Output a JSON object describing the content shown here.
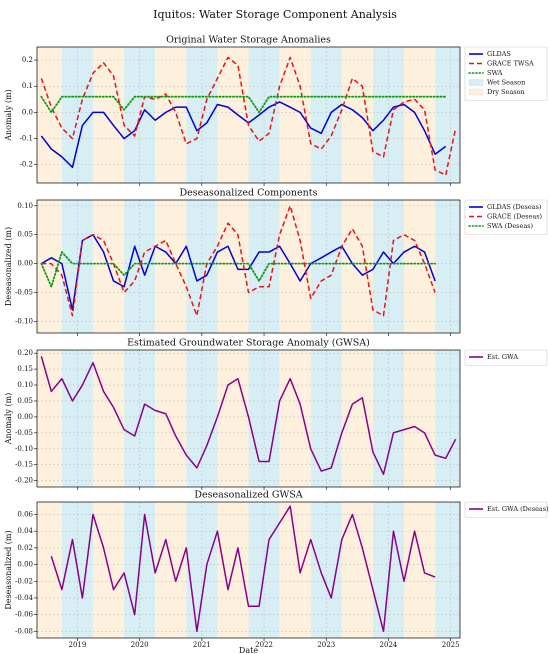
{
  "title": "Iquitos: Water Storage Component Analysis",
  "chart_data": [
    {
      "type": "line",
      "title": "Original Water Storage Anomalies",
      "ylabel": "Anomaly (m)",
      "xlim": [
        2018.35,
        2025.15
      ],
      "xticks": [
        2019,
        2020,
        2021,
        2022,
        2023,
        2024,
        2025
      ],
      "ylim": [
        -0.27,
        0.25
      ],
      "yticks": [
        -0.2,
        -0.1,
        {
          "value": 0,
          "label": "0.0"
        },
        0.1,
        0.2
      ],
      "grid": true,
      "seasons": [
        {
          "name": "Wet Season",
          "color": "#d6eef4",
          "ranges": [
            [
              2018.75,
              2019.25
            ],
            [
              2019.75,
              2020.25
            ],
            [
              2020.75,
              2021.25
            ],
            [
              2021.75,
              2022.25
            ],
            [
              2022.75,
              2023.25
            ],
            [
              2023.75,
              2024.25
            ],
            [
              2024.75,
              2025.25
            ]
          ]
        },
        {
          "name": "Dry Season",
          "color": "#fdf1de",
          "ranges": [
            [
              2018.25,
              2018.75
            ],
            [
              2019.25,
              2019.75
            ],
            [
              2020.25,
              2020.75
            ],
            [
              2021.25,
              2021.75
            ],
            [
              2022.25,
              2022.75
            ],
            [
              2023.25,
              2023.75
            ],
            [
              2024.25,
              2024.75
            ]
          ]
        }
      ],
      "x": [
        2018.42,
        2018.58,
        2018.75,
        2018.92,
        2019.08,
        2019.25,
        2019.42,
        2019.58,
        2019.75,
        2019.92,
        2020.08,
        2020.25,
        2020.42,
        2020.58,
        2020.75,
        2020.92,
        2021.08,
        2021.25,
        2021.42,
        2021.58,
        2021.75,
        2021.92,
        2022.08,
        2022.25,
        2022.42,
        2022.58,
        2022.75,
        2022.92,
        2023.08,
        2023.25,
        2023.42,
        2023.58,
        2023.75,
        2023.92,
        2024.08,
        2024.25,
        2024.42,
        2024.58,
        2024.75,
        2024.92,
        2025.08
      ],
      "series": [
        {
          "name": "GLDAS",
          "color": "#0000dd",
          "dash": "solid",
          "values": [
            -0.09,
            -0.14,
            -0.17,
            -0.21,
            -0.05,
            0.0,
            0.0,
            -0.05,
            -0.1,
            -0.07,
            0.01,
            -0.03,
            0.0,
            0.02,
            0.02,
            -0.07,
            -0.04,
            0.03,
            0.02,
            -0.01,
            -0.04,
            -0.01,
            0.02,
            0.04,
            0.02,
            0.0,
            -0.06,
            -0.08,
            0.0,
            0.03,
            0.01,
            -0.02,
            -0.07,
            -0.03,
            0.02,
            0.03,
            0.0,
            -0.07,
            -0.16,
            -0.13,
            null
          ]
        },
        {
          "name": "GRACE TWSA",
          "color": "#ee1111",
          "dash": "dashed",
          "values": [
            0.13,
            0.02,
            -0.06,
            -0.1,
            0.05,
            0.15,
            0.19,
            0.14,
            -0.05,
            -0.09,
            0.06,
            0.05,
            0.07,
            0.0,
            -0.12,
            -0.1,
            0.05,
            0.13,
            0.21,
            0.18,
            -0.05,
            -0.11,
            -0.08,
            0.1,
            0.21,
            0.1,
            -0.12,
            -0.14,
            -0.09,
            0.01,
            0.13,
            0.1,
            -0.15,
            -0.17,
            0.01,
            0.04,
            0.05,
            0.01,
            -0.22,
            -0.24,
            -0.06
          ]
        },
        {
          "name": "SWA",
          "color": "#119911",
          "dash": "dotted",
          "values": [
            0.06,
            0.0,
            0.06,
            0.06,
            0.06,
            0.06,
            0.06,
            0.06,
            0.01,
            0.06,
            0.06,
            0.06,
            0.06,
            0.06,
            0.06,
            0.06,
            0.06,
            0.06,
            0.06,
            0.06,
            0.06,
            0.0,
            0.06,
            0.06,
            0.06,
            0.06,
            0.06,
            0.06,
            0.06,
            0.06,
            0.06,
            0.06,
            0.06,
            0.06,
            0.06,
            0.06,
            0.06,
            0.06,
            0.06,
            0.06,
            null
          ]
        }
      ]
    },
    {
      "type": "line",
      "title": "Deseasonalized Components",
      "ylabel": "Deseasonalized (m)",
      "xlim": [
        2018.35,
        2025.15
      ],
      "xticks": [
        2019,
        2020,
        2021,
        2022,
        2023,
        2024,
        2025
      ],
      "ylim": [
        -0.12,
        0.11
      ],
      "yticks": [
        {
          "value": -0.1,
          "label": "-0.10"
        },
        -0.05,
        {
          "value": 0,
          "label": "0.00"
        },
        0.05,
        {
          "value": 0.1,
          "label": "0.10"
        }
      ],
      "grid": true,
      "x": [
        2018.42,
        2018.58,
        2018.75,
        2018.92,
        2019.08,
        2019.25,
        2019.42,
        2019.58,
        2019.75,
        2019.92,
        2020.08,
        2020.25,
        2020.42,
        2020.58,
        2020.75,
        2020.92,
        2021.08,
        2021.25,
        2021.42,
        2021.58,
        2021.75,
        2021.92,
        2022.08,
        2022.25,
        2022.42,
        2022.58,
        2022.75,
        2022.92,
        2023.08,
        2023.25,
        2023.42,
        2023.58,
        2023.75,
        2023.92,
        2024.08,
        2024.25,
        2024.42,
        2024.58,
        2024.75
      ],
      "series": [
        {
          "name": "GLDAS (Deseas)",
          "color": "#0000dd",
          "dash": "solid",
          "values": [
            0.0,
            0.01,
            0.0,
            -0.08,
            0.04,
            0.05,
            0.02,
            -0.03,
            -0.04,
            0.03,
            -0.02,
            0.03,
            0.02,
            0.0,
            0.03,
            -0.03,
            -0.02,
            0.02,
            0.03,
            -0.01,
            -0.01,
            0.02,
            0.02,
            0.03,
            0.0,
            -0.03,
            0.0,
            0.01,
            0.02,
            0.03,
            0.0,
            -0.02,
            -0.01,
            0.02,
            0.0,
            0.02,
            0.03,
            0.02,
            -0.03
          ]
        },
        {
          "name": "GRACE (Deseas)",
          "color": "#ee1111",
          "dash": "dashed",
          "values": [
            0.0,
            0.0,
            -0.02,
            -0.09,
            0.04,
            0.05,
            0.04,
            0.0,
            -0.05,
            -0.03,
            0.02,
            0.03,
            0.04,
            0.0,
            -0.04,
            -0.09,
            0.0,
            0.03,
            0.07,
            0.05,
            -0.05,
            -0.04,
            -0.04,
            0.05,
            0.1,
            0.04,
            -0.06,
            -0.03,
            -0.02,
            0.03,
            0.06,
            0.03,
            -0.08,
            -0.09,
            0.04,
            0.05,
            0.04,
            0.0,
            -0.05
          ]
        },
        {
          "name": "SWA (Deseas)",
          "color": "#119911",
          "dash": "dotted",
          "values": [
            0.0,
            -0.04,
            0.02,
            0.0,
            0.0,
            0.0,
            0.0,
            0.0,
            -0.02,
            0.0,
            0.0,
            0.0,
            0.0,
            0.0,
            0.0,
            0.0,
            0.0,
            0.0,
            0.0,
            0.0,
            0.0,
            -0.03,
            0.0,
            0.0,
            0.0,
            0.0,
            0.0,
            0.0,
            0.0,
            0.0,
            0.0,
            0.0,
            0.0,
            0.0,
            0.0,
            0.0,
            0.0,
            0.0,
            0.0
          ]
        }
      ]
    },
    {
      "type": "line",
      "title": "Estimated Groundwater Storage Anomaly (GWSA)",
      "ylabel": "Anomaly (m)",
      "xlim": [
        2018.35,
        2025.15
      ],
      "xticks": [
        2019,
        2020,
        2021,
        2022,
        2023,
        2024,
        2025
      ],
      "ylim": [
        -0.22,
        0.21
      ],
      "yticks": [
        {
          "value": -0.2,
          "label": "-0.20"
        },
        -0.15,
        {
          "value": -0.1,
          "label": "-0.10"
        },
        -0.05,
        {
          "value": 0,
          "label": "0.00"
        },
        0.05,
        {
          "value": 0.1,
          "label": "0.10"
        },
        0.15,
        {
          "value": 0.2,
          "label": "0.20"
        }
      ],
      "grid": true,
      "x": [
        2018.42,
        2018.58,
        2018.75,
        2018.92,
        2019.08,
        2019.25,
        2019.42,
        2019.58,
        2019.75,
        2019.92,
        2020.08,
        2020.25,
        2020.42,
        2020.58,
        2020.75,
        2020.92,
        2021.08,
        2021.25,
        2021.42,
        2021.58,
        2021.75,
        2021.92,
        2022.08,
        2022.25,
        2022.42,
        2022.58,
        2022.75,
        2022.92,
        2023.08,
        2023.25,
        2023.42,
        2023.58,
        2023.75,
        2023.92,
        2024.08,
        2024.25,
        2024.42,
        2024.58,
        2024.75,
        2024.92,
        2025.08
      ],
      "series": [
        {
          "name": "Est. GWA",
          "color": "#8b008b",
          "dash": "solid",
          "values": [
            0.19,
            0.08,
            0.12,
            0.05,
            0.1,
            0.17,
            0.08,
            0.03,
            -0.04,
            -0.06,
            0.04,
            0.02,
            0.01,
            -0.06,
            -0.12,
            -0.16,
            -0.09,
            0.0,
            0.1,
            0.12,
            0.0,
            -0.14,
            -0.14,
            0.05,
            0.12,
            0.04,
            -0.1,
            -0.17,
            -0.16,
            -0.05,
            0.04,
            0.06,
            -0.11,
            -0.18,
            -0.05,
            -0.04,
            -0.03,
            -0.05,
            -0.12,
            -0.13,
            -0.07
          ]
        }
      ]
    },
    {
      "type": "line",
      "title": "Deseasonalized GWSA",
      "ylabel": "Deseasonalized (m)",
      "xlabel": "Date",
      "xlim": [
        2018.35,
        2025.15
      ],
      "xticks": [
        2019,
        2020,
        2021,
        2022,
        2023,
        2024,
        2025
      ],
      "ylim": [
        -0.088,
        0.075
      ],
      "yticks": [
        -0.08,
        -0.06,
        -0.04,
        -0.02,
        {
          "value": 0,
          "label": "0.00"
        },
        0.02,
        0.04,
        0.06
      ],
      "grid": true,
      "x": [
        2018.58,
        2018.75,
        2018.92,
        2019.08,
        2019.25,
        2019.42,
        2019.58,
        2019.75,
        2019.92,
        2020.08,
        2020.25,
        2020.42,
        2020.58,
        2020.75,
        2020.92,
        2021.08,
        2021.25,
        2021.42,
        2021.58,
        2021.75,
        2021.92,
        2022.08,
        2022.25,
        2022.42,
        2022.58,
        2022.75,
        2022.92,
        2023.08,
        2023.25,
        2023.42,
        2023.58,
        2023.75,
        2023.92,
        2024.08,
        2024.25,
        2024.42,
        2024.58,
        2024.75
      ],
      "series": [
        {
          "name": "Est. GWA (Deseas)",
          "color": "#8b008b",
          "dash": "solid",
          "values": [
            0.01,
            -0.03,
            0.03,
            -0.04,
            0.06,
            0.02,
            -0.03,
            -0.01,
            -0.06,
            0.06,
            -0.01,
            0.03,
            -0.02,
            0.02,
            -0.08,
            0.0,
            0.04,
            -0.03,
            0.02,
            -0.05,
            -0.05,
            0.03,
            0.05,
            0.07,
            -0.01,
            0.03,
            -0.01,
            -0.04,
            0.03,
            0.06,
            0.02,
            -0.03,
            -0.08,
            0.04,
            -0.02,
            0.04,
            -0.01,
            -0.015
          ]
        }
      ]
    }
  ]
}
